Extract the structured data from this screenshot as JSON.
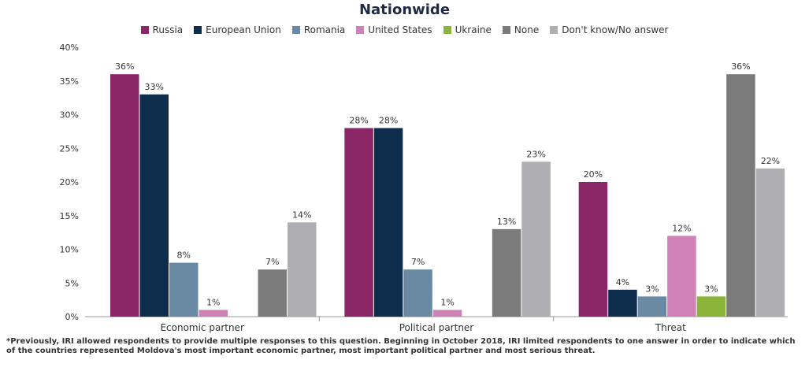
{
  "chart_data": {
    "type": "bar",
    "title": "Nationwide",
    "categories": [
      "Economic partner",
      "Political partner",
      "Threat"
    ],
    "series": [
      {
        "name": "Russia",
        "color": "#8b2766",
        "values": [
          36,
          28,
          20
        ]
      },
      {
        "name": "European Union",
        "color": "#0e2d4d",
        "values": [
          33,
          28,
          4
        ]
      },
      {
        "name": "Romania",
        "color": "#6a8aa3",
        "values": [
          8,
          7,
          3
        ]
      },
      {
        "name": "United States",
        "color": "#cf82b6",
        "values": [
          1,
          1,
          12
        ]
      },
      {
        "name": "Ukraine",
        "color": "#8ab43a",
        "values": [
          null,
          null,
          3
        ]
      },
      {
        "name": "None",
        "color": "#7b7b7b",
        "values": [
          7,
          13,
          36
        ]
      },
      {
        "name": "Don't know/No answer",
        "color": "#aeaeb3",
        "values": [
          14,
          23,
          22
        ]
      }
    ],
    "ylim": [
      0,
      40
    ],
    "yticks": [
      0,
      5,
      10,
      15,
      20,
      25,
      30,
      35,
      40
    ],
    "value_suffix": "%",
    "grid": false,
    "legend_position": "top"
  },
  "footnote": "*Previously, IRI allowed respondents to provide multiple responses to this question. Beginning in October 2018, IRI limited respondents to one answer in order to indicate which of the countries represented Moldova's most important economic partner, most important political partner and most serious threat."
}
